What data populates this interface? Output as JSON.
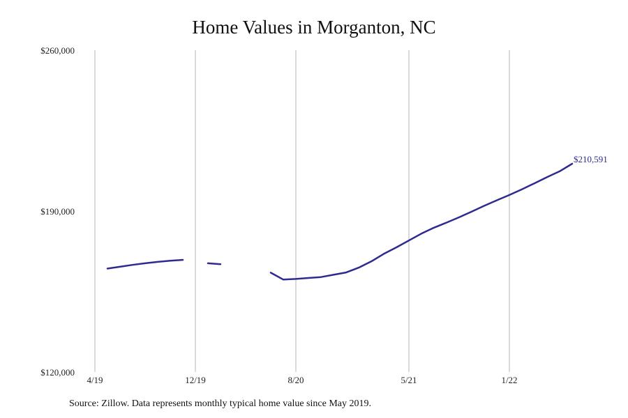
{
  "chart_data": {
    "type": "line",
    "title": "Home Values in Morganton, NC",
    "source": "Source: Zillow. Data represents monthly typical home value since May 2019.",
    "xlabel": "",
    "ylabel": "",
    "x_ticks": [
      "4/19",
      "12/19",
      "8/20",
      "5/21",
      "1/22"
    ],
    "y_ticks": [
      "$260,000",
      "$190,000",
      "$120,000"
    ],
    "ylim": [
      120000,
      260000
    ],
    "grid": "vertical",
    "series_color": "#2e2a8f",
    "end_label": "$210,591",
    "series": [
      {
        "segments": [
          [
            {
              "x": "2019-05",
              "y": 165000
            },
            {
              "x": "2019-06",
              "y": 165800
            },
            {
              "x": "2019-07",
              "y": 166600
            },
            {
              "x": "2019-08",
              "y": 167300
            },
            {
              "x": "2019-09",
              "y": 167900
            },
            {
              "x": "2019-10",
              "y": 168400
            },
            {
              "x": "2019-11",
              "y": 168800
            }
          ],
          [
            {
              "x": "2020-01",
              "y": 167300
            },
            {
              "x": "2020-02",
              "y": 166900
            }
          ],
          [
            {
              "x": "2020-06",
              "y": 163200
            },
            {
              "x": "2020-07",
              "y": 160200
            },
            {
              "x": "2020-08",
              "y": 160500
            },
            {
              "x": "2020-09",
              "y": 160900
            },
            {
              "x": "2020-10",
              "y": 161300
            },
            {
              "x": "2020-11",
              "y": 162300
            },
            {
              "x": "2020-12",
              "y": 163300
            },
            {
              "x": "2021-01",
              "y": 165400
            },
            {
              "x": "2021-02",
              "y": 168100
            },
            {
              "x": "2021-03",
              "y": 171400
            },
            {
              "x": "2021-04",
              "y": 174200
            },
            {
              "x": "2021-05",
              "y": 177200
            },
            {
              "x": "2021-06",
              "y": 180200
            },
            {
              "x": "2021-07",
              "y": 182800
            },
            {
              "x": "2021-08",
              "y": 185000
            },
            {
              "x": "2021-09",
              "y": 187300
            },
            {
              "x": "2021-10",
              "y": 189800
            },
            {
              "x": "2021-11",
              "y": 192300
            },
            {
              "x": "2021-12",
              "y": 194700
            },
            {
              "x": "2022-01",
              "y": 197000
            },
            {
              "x": "2022-02",
              "y": 199500
            },
            {
              "x": "2022-03",
              "y": 202100
            },
            {
              "x": "2022-04",
              "y": 204800
            },
            {
              "x": "2022-05",
              "y": 207300
            },
            {
              "x": "2022-06",
              "y": 210591
            }
          ]
        ]
      }
    ]
  }
}
